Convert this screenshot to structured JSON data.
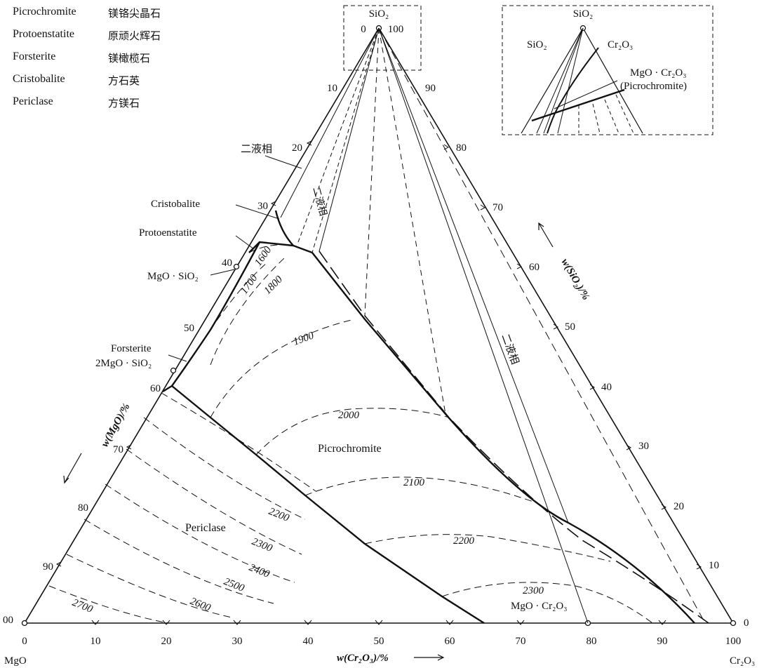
{
  "legend": [
    {
      "en": "Picrochromite",
      "zh": "镁铬尖晶石"
    },
    {
      "en": "Protoenstatite",
      "zh": "原顽火辉石"
    },
    {
      "en": "Forsterite",
      "zh": "镁橄榄石"
    },
    {
      "en": "Cristobalite",
      "zh": "方石英"
    },
    {
      "en": "Periclase",
      "zh": "方镁石"
    }
  ],
  "corners": {
    "top": "SiO₂",
    "left": "MgO",
    "right": "Cr₂O₃",
    "top_left_tick": "0",
    "top_right_tick": "100",
    "left_tick": "00",
    "right_tick": "0"
  },
  "axes": {
    "bottom_label": "w(Cr₂O₃)/%",
    "left_label": "w(MgO)/%",
    "right_label": "w(SiO₂)/%",
    "bottom_ticks": [
      "0",
      "10",
      "20",
      "30",
      "40",
      "50",
      "60",
      "70",
      "80",
      "90",
      "100"
    ],
    "left_ticks": [
      "10",
      "20",
      "30",
      "40",
      "50",
      "60",
      "70",
      "80",
      "90"
    ],
    "right_ticks": [
      "90",
      "80",
      "70",
      "60",
      "50",
      "40",
      "30",
      "20",
      "10"
    ]
  },
  "labels": {
    "two_liquid_left": "二液相",
    "two_liquid_upper": "二液相",
    "two_liquid_right": "二液相",
    "cristobalite": "Cristobalite",
    "protoenstatite": "Protoenstatite",
    "mgo_sio2": "MgO · SiO₂",
    "forsterite": "Forsterite",
    "forsterite_formula": "2MgO · SiO₂",
    "picrochromite": "Picrochromite",
    "periclase": "Periclase",
    "mgo_cr2o3": "MgO · Cr₂O₃"
  },
  "isotherms": [
    "1600",
    "1700",
    "1800",
    "1900",
    "2000",
    "2100",
    "2200",
    "2200",
    "2300",
    "2300",
    "2400",
    "2500",
    "2600",
    "2700"
  ],
  "inset": {
    "apex": "SiO₂",
    "sio2": "SiO₂",
    "cr2o3": "Cr₂O₃",
    "compound": "MgO · Cr₂O₃",
    "compound_name": "(Picrochromite)"
  }
}
